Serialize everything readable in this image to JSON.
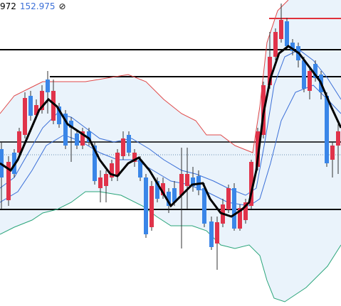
{
  "header": {
    "left_value": "972",
    "price": "152.975",
    "icon": "⊘"
  }
}
